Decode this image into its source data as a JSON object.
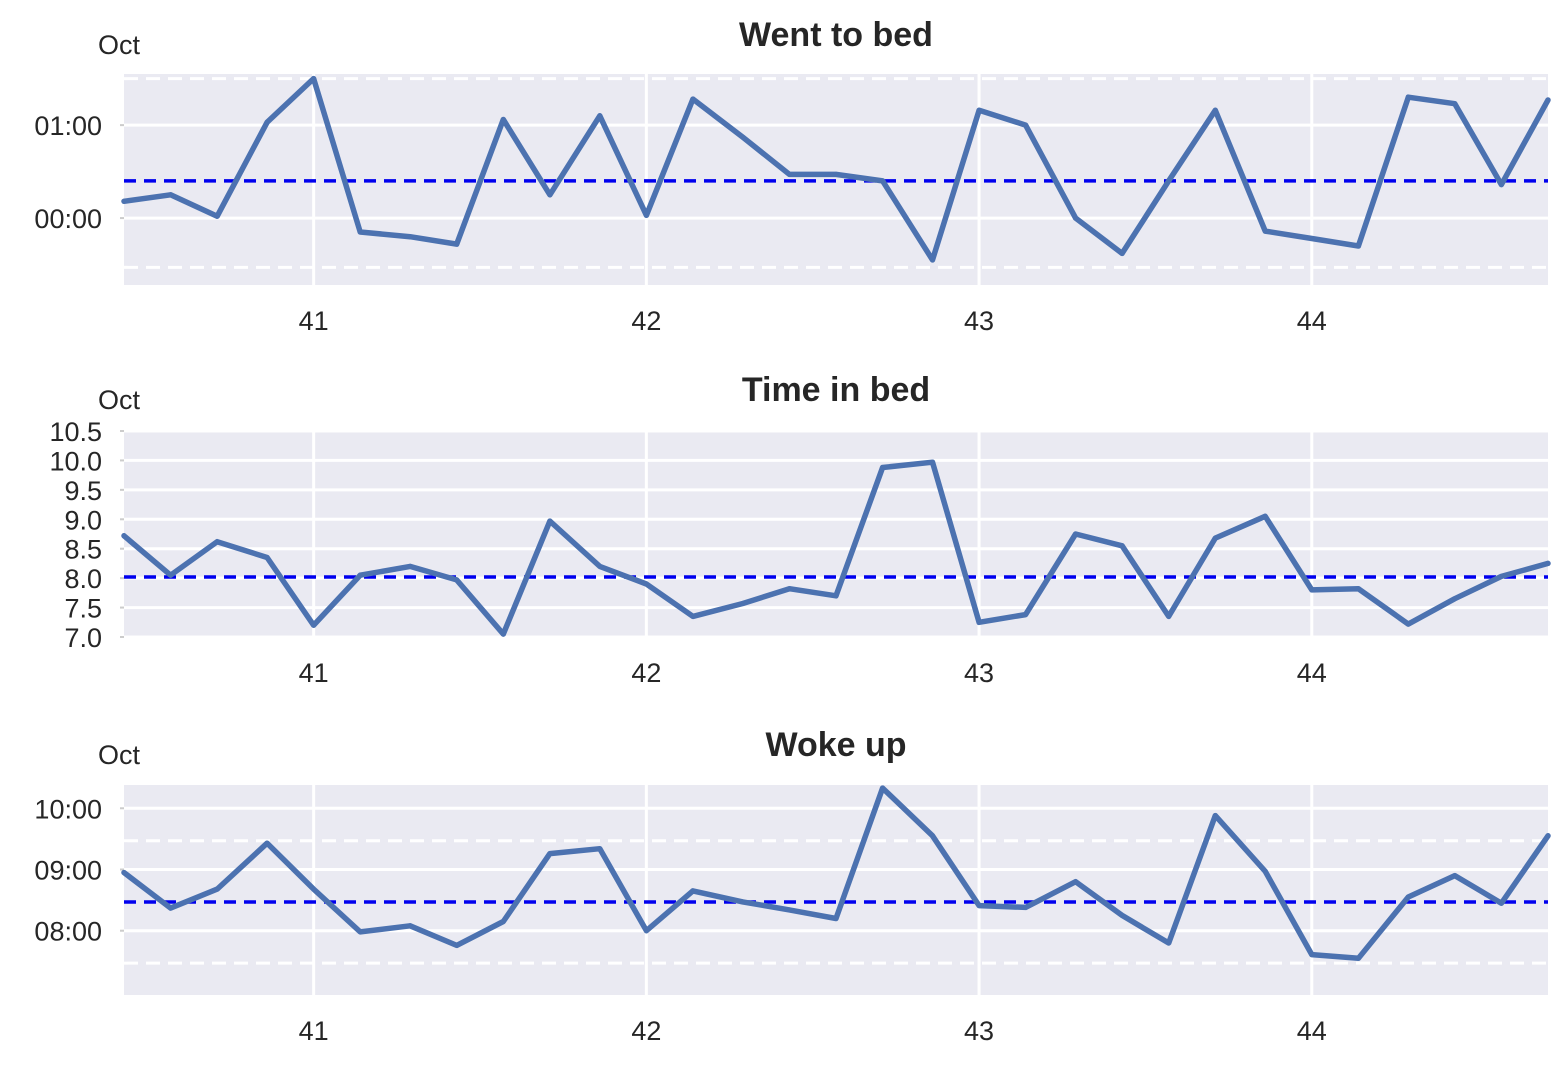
{
  "chart_data": [
    {
      "type": "line",
      "title": "Went to bed",
      "corner_label": "Oct",
      "x_ticks": [
        {
          "x": 41,
          "label": "41"
        },
        {
          "x": 42,
          "label": "42"
        },
        {
          "x": 43,
          "label": "43"
        },
        {
          "x": 44,
          "label": "44"
        }
      ],
      "xlim": [
        40.43,
        44.71
      ],
      "y_unit": "hours relative to midnight",
      "y_ticks": [
        {
          "y": 0,
          "label": "00:00"
        },
        {
          "y": 1,
          "label": "01:00"
        }
      ],
      "ylim": [
        -0.72,
        1.55
      ],
      "mean_line": 0.4,
      "band_lines": [
        -0.53,
        1.5
      ],
      "grid": true,
      "x": [
        40.43,
        40.57,
        40.71,
        40.86,
        41.0,
        41.14,
        41.29,
        41.43,
        41.57,
        41.71,
        41.86,
        42.0,
        42.14,
        42.29,
        42.43,
        42.57,
        42.71,
        42.86,
        43.0,
        43.14,
        43.29,
        43.43,
        43.57,
        43.71,
        43.86,
        44.0,
        44.14,
        44.29,
        44.43,
        44.57,
        44.71
      ],
      "series": [
        {
          "values": [
            0.18,
            0.25,
            0.02,
            1.03,
            1.5,
            -0.15,
            -0.2,
            -0.28,
            1.06,
            0.25,
            1.1,
            0.03,
            1.28,
            0.87,
            0.47,
            0.47,
            0.4,
            -0.45,
            1.16,
            1.0,
            0.0,
            -0.38,
            0.4,
            1.16,
            -0.14,
            -0.22,
            -0.3,
            1.3,
            1.23,
            0.36,
            1.27
          ]
        }
      ]
    },
    {
      "type": "line",
      "title": "Time in bed",
      "corner_label": "Oct",
      "x_ticks": [
        {
          "x": 41,
          "label": "41"
        },
        {
          "x": 42,
          "label": "42"
        },
        {
          "x": 43,
          "label": "43"
        },
        {
          "x": 44,
          "label": "44"
        }
      ],
      "xlim": [
        40.43,
        44.71
      ],
      "y_ticks": [
        {
          "y": 7.0,
          "label": "7.0"
        },
        {
          "y": 7.5,
          "label": "7.5"
        },
        {
          "y": 8.0,
          "label": "8.0"
        },
        {
          "y": 8.5,
          "label": "8.5"
        },
        {
          "y": 9.0,
          "label": "9.0"
        },
        {
          "y": 9.5,
          "label": "9.5"
        },
        {
          "y": 10.0,
          "label": "10.0"
        },
        {
          "y": 10.5,
          "label": "10.5"
        }
      ],
      "ylim": [
        7.0,
        10.5
      ],
      "mean_line": 8.02,
      "grid": true,
      "x": [
        40.43,
        40.57,
        40.71,
        40.86,
        41.0,
        41.14,
        41.29,
        41.43,
        41.57,
        41.71,
        41.86,
        42.0,
        42.14,
        42.29,
        42.43,
        42.57,
        42.71,
        42.86,
        43.0,
        43.14,
        43.29,
        43.43,
        43.57,
        43.71,
        43.86,
        44.0,
        44.14,
        44.29,
        44.43,
        44.57,
        44.71
      ],
      "series": [
        {
          "values": [
            8.72,
            8.05,
            8.62,
            8.35,
            7.2,
            8.05,
            8.2,
            7.97,
            7.05,
            8.97,
            8.2,
            7.9,
            7.35,
            7.57,
            7.82,
            7.7,
            9.88,
            9.97,
            7.25,
            7.38,
            8.75,
            8.55,
            7.35,
            8.68,
            9.05,
            7.8,
            7.82,
            7.22,
            7.65,
            8.03,
            8.25
          ]
        }
      ]
    },
    {
      "type": "line",
      "title": "Woke up",
      "corner_label": "Oct",
      "x_ticks": [
        {
          "x": 41,
          "label": "41"
        },
        {
          "x": 42,
          "label": "42"
        },
        {
          "x": 43,
          "label": "43"
        },
        {
          "x": 44,
          "label": "44"
        }
      ],
      "xlim": [
        40.43,
        44.71
      ],
      "y_unit": "hours after midnight",
      "y_ticks": [
        {
          "y": 8,
          "label": "08:00"
        },
        {
          "y": 9,
          "label": "09:00"
        },
        {
          "y": 10,
          "label": "10:00"
        }
      ],
      "ylim": [
        6.95,
        10.38
      ],
      "mean_line": 8.47,
      "band_lines": [
        7.47,
        9.47
      ],
      "grid": true,
      "x": [
        40.43,
        40.57,
        40.71,
        40.86,
        41.0,
        41.14,
        41.29,
        41.43,
        41.57,
        41.71,
        41.86,
        42.0,
        42.14,
        42.29,
        42.43,
        42.57,
        42.71,
        42.86,
        43.0,
        43.14,
        43.29,
        43.43,
        43.57,
        43.71,
        43.86,
        44.0,
        44.14,
        44.29,
        44.43,
        44.57,
        44.71
      ],
      "series": [
        {
          "values": [
            8.95,
            8.37,
            8.68,
            9.43,
            8.68,
            7.98,
            8.08,
            7.76,
            8.15,
            9.26,
            9.34,
            8.0,
            8.65,
            8.47,
            8.34,
            8.2,
            10.33,
            9.55,
            8.41,
            8.38,
            8.8,
            8.25,
            7.8,
            9.88,
            8.97,
            7.61,
            7.55,
            8.55,
            8.9,
            8.45,
            9.55
          ]
        }
      ]
    }
  ]
}
